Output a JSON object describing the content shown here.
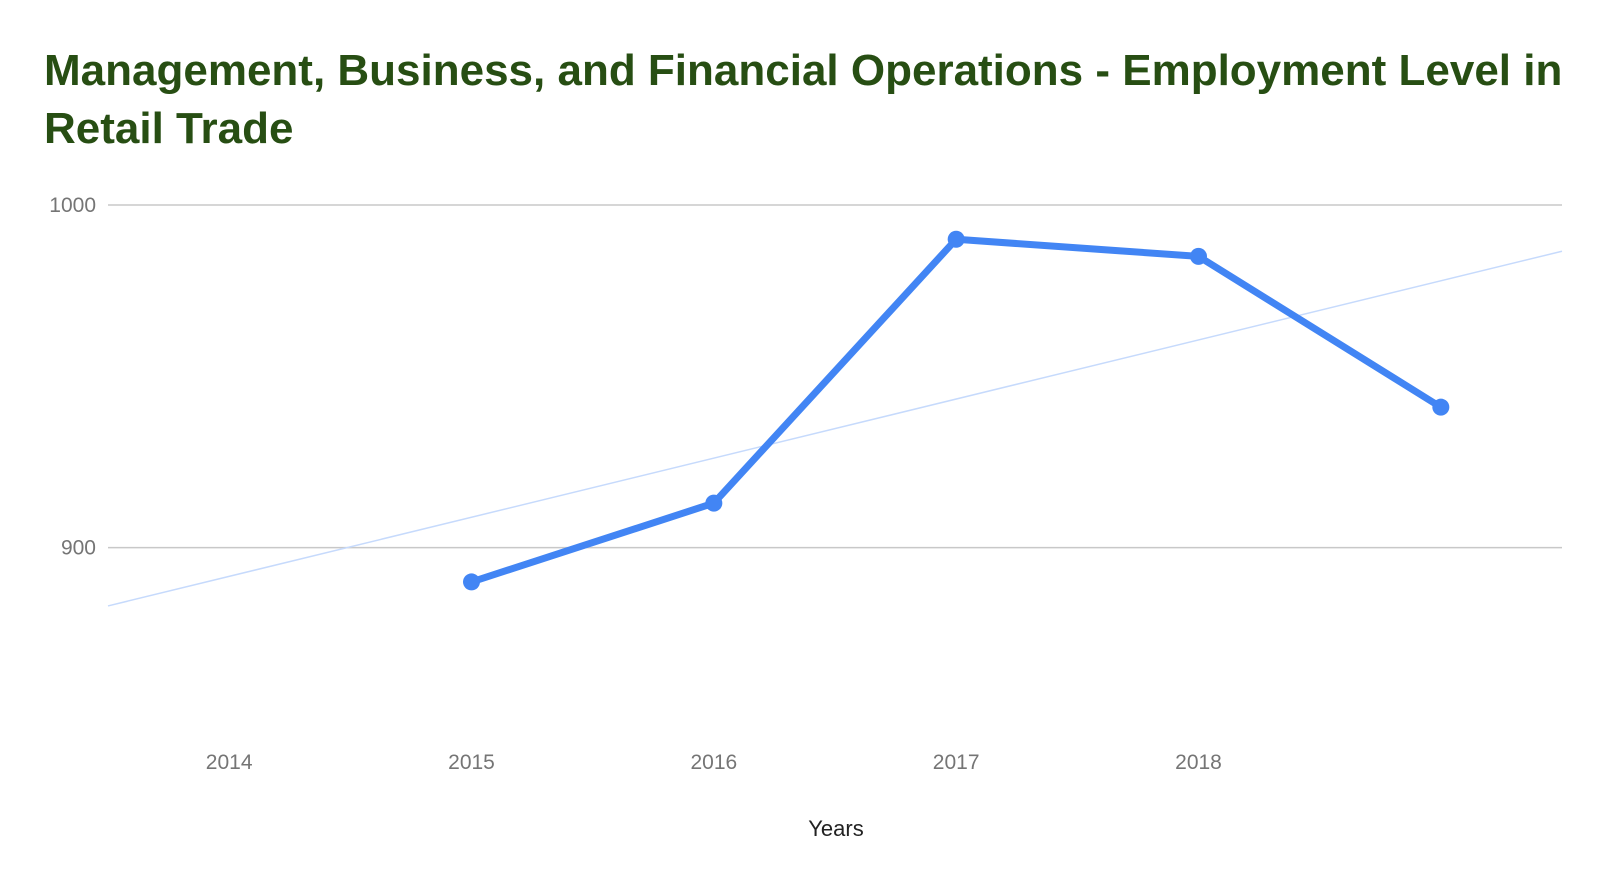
{
  "chart_data": {
    "type": "line",
    "title": "Management, Business, and Financial Operations - Employment Level in Retail Trade",
    "xlabel": "Years",
    "ylabel": "",
    "x_ticks": [
      "2014",
      "2015",
      "2016",
      "2017",
      "2018"
    ],
    "y_ticks": [
      900,
      1000
    ],
    "xlim": [
      2013.5,
      2019.5
    ],
    "ylim": [
      850,
      1000
    ],
    "grid": true,
    "legend": "none",
    "series": [
      {
        "x": [
          2015,
          2016,
          2017,
          2018,
          2019
        ],
        "values": [
          890,
          913,
          990,
          985,
          941
        ],
        "color": "#4285f4"
      }
    ],
    "trendline": {
      "x": [
        2013.5,
        2019.5
      ],
      "values": [
        883,
        986.5
      ],
      "color": "#c6dafc"
    }
  }
}
